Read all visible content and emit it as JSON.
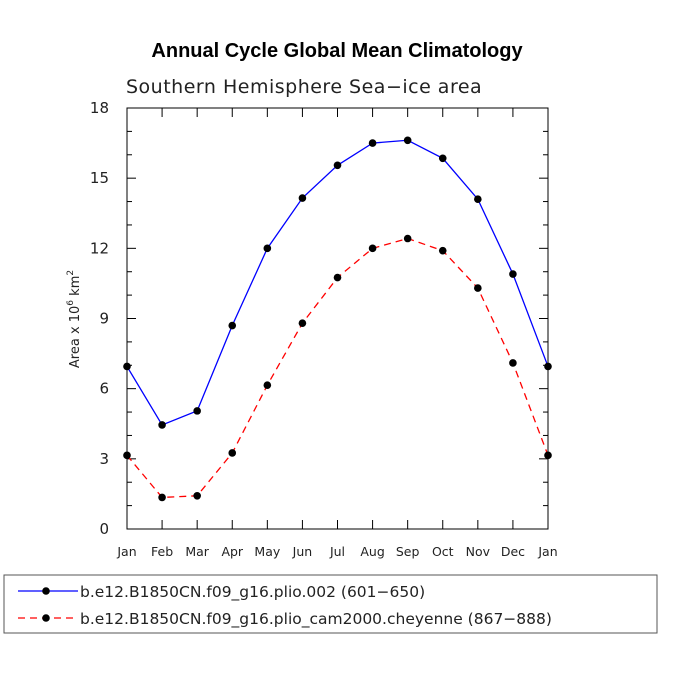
{
  "chart_data": {
    "type": "line",
    "title": "Annual Cycle Global Mean Climatology",
    "subtitle": "Southern Hemisphere Sea−ice area",
    "ylabel_prefix": "Area x 10",
    "ylabel_exp": "6",
    "ylabel_unit": " km",
    "ylabel_unit_exp": "2",
    "xlabel": "",
    "categories": [
      "Jan",
      "Feb",
      "Mar",
      "Apr",
      "May",
      "Jun",
      "Jul",
      "Aug",
      "Sep",
      "Oct",
      "Nov",
      "Dec",
      "Jan"
    ],
    "ylim": [
      0,
      18
    ],
    "yticks": [
      0,
      3,
      6,
      9,
      12,
      15,
      18
    ],
    "series": [
      {
        "name": "b.e12.B1850CN.f09_g16.plio.002 (601−650)",
        "color": "#0000ff",
        "dash": "solid",
        "values": [
          6.95,
          4.45,
          5.05,
          8.7,
          12.0,
          14.15,
          15.55,
          16.5,
          16.62,
          15.85,
          14.1,
          10.9,
          6.95
        ]
      },
      {
        "name": "b.e12.B1850CN.f09_g16.plio_cam2000.cheyenne (867−888)",
        "color": "#ff0000",
        "dash": "dashed",
        "values": [
          3.15,
          1.35,
          1.42,
          3.25,
          6.15,
          8.8,
          10.75,
          12.0,
          12.42,
          11.9,
          10.3,
          7.1,
          3.15
        ]
      }
    ],
    "legend_position": "bottom"
  }
}
